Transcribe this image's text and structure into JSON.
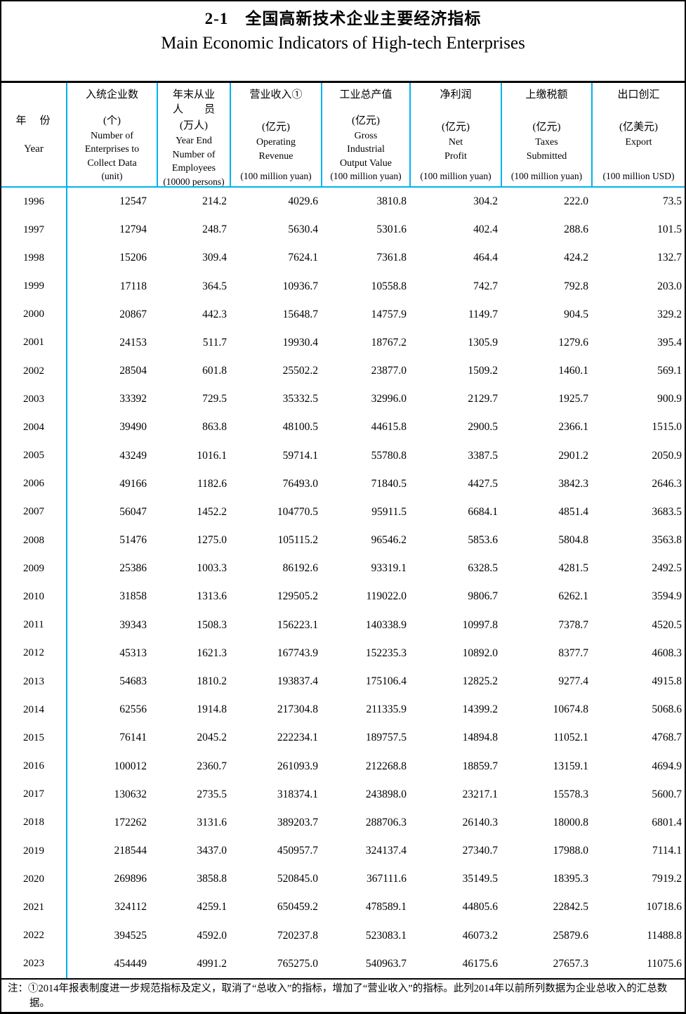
{
  "header": {
    "title_zh": "2-1　全国高新技术企业主要经济指标",
    "title_en": "Main Economic Indicators of High-tech Enterprises"
  },
  "colors": {
    "column_divider_cyan": "#00b2f0",
    "frame_black": "#000000"
  },
  "table": {
    "columns": [
      {
        "zh": "年　份",
        "en_lines": [
          "Year"
        ]
      },
      {
        "zh": "入统企业数",
        "unit_zh": "(个)",
        "en_lines": [
          "Number of",
          "Enterprises to",
          "Collect Data"
        ],
        "unit_en": "(unit)"
      },
      {
        "zh": "年末从业",
        "zh2": "人　　员",
        "unit_zh": "(万人)",
        "en_lines": [
          "Year End",
          "Number of",
          "Employees"
        ],
        "unit_en": "(10000 persons)"
      },
      {
        "zh": "营业收入①",
        "unit_zh": "(亿元)",
        "en_lines": [
          "Operating",
          "Revenue"
        ],
        "unit_en": "(100 million yuan)"
      },
      {
        "zh": "工业总产值",
        "unit_zh": "(亿元)",
        "en_lines": [
          "Gross",
          "Industrial",
          "Output Value"
        ],
        "unit_en": "(100 million yuan)"
      },
      {
        "zh": "净利润",
        "unit_zh": "(亿元)",
        "en_lines": [
          "Net",
          "Profit"
        ],
        "unit_en": "(100 million yuan)"
      },
      {
        "zh": "上缴税额",
        "unit_zh": "(亿元)",
        "en_lines": [
          "Taxes",
          "Submitted"
        ],
        "unit_en": "(100 million yuan)"
      },
      {
        "zh": "出口创汇",
        "unit_zh": "(亿美元)",
        "en_lines": [
          "Export"
        ],
        "unit_en": "(100 million USD)"
      }
    ],
    "rows": [
      [
        "1996",
        "12547",
        "214.2",
        "4029.6",
        "3810.8",
        "304.2",
        "222.0",
        "73.5"
      ],
      [
        "1997",
        "12794",
        "248.7",
        "5630.4",
        "5301.6",
        "402.4",
        "288.6",
        "101.5"
      ],
      [
        "1998",
        "15206",
        "309.4",
        "7624.1",
        "7361.8",
        "464.4",
        "424.2",
        "132.7"
      ],
      [
        "1999",
        "17118",
        "364.5",
        "10936.7",
        "10558.8",
        "742.7",
        "792.8",
        "203.0"
      ],
      [
        "2000",
        "20867",
        "442.3",
        "15648.7",
        "14757.9",
        "1149.7",
        "904.5",
        "329.2"
      ],
      [
        "2001",
        "24153",
        "511.7",
        "19930.4",
        "18767.2",
        "1305.9",
        "1279.6",
        "395.4"
      ],
      [
        "2002",
        "28504",
        "601.8",
        "25502.2",
        "23877.0",
        "1509.2",
        "1460.1",
        "569.1"
      ],
      [
        "2003",
        "33392",
        "729.5",
        "35332.5",
        "32996.0",
        "2129.7",
        "1925.7",
        "900.9"
      ],
      [
        "2004",
        "39490",
        "863.8",
        "48100.5",
        "44615.8",
        "2900.5",
        "2366.1",
        "1515.0"
      ],
      [
        "2005",
        "43249",
        "1016.1",
        "59714.1",
        "55780.8",
        "3387.5",
        "2901.2",
        "2050.9"
      ],
      [
        "2006",
        "49166",
        "1182.6",
        "76493.0",
        "71840.5",
        "4427.5",
        "3842.3",
        "2646.3"
      ],
      [
        "2007",
        "56047",
        "1452.2",
        "104770.5",
        "95911.5",
        "6684.1",
        "4851.4",
        "3683.5"
      ],
      [
        "2008",
        "51476",
        "1275.0",
        "105115.2",
        "96546.2",
        "5853.6",
        "5804.8",
        "3563.8"
      ],
      [
        "2009",
        "25386",
        "1003.3",
        "86192.6",
        "93319.1",
        "6328.5",
        "4281.5",
        "2492.5"
      ],
      [
        "2010",
        "31858",
        "1313.6",
        "129505.2",
        "119022.0",
        "9806.7",
        "6262.1",
        "3594.9"
      ],
      [
        "2011",
        "39343",
        "1508.3",
        "156223.1",
        "140338.9",
        "10997.8",
        "7378.7",
        "4520.5"
      ],
      [
        "2012",
        "45313",
        "1621.3",
        "167743.9",
        "152235.3",
        "10892.0",
        "8377.7",
        "4608.3"
      ],
      [
        "2013",
        "54683",
        "1810.2",
        "193837.4",
        "175106.4",
        "12825.2",
        "9277.4",
        "4915.8"
      ],
      [
        "2014",
        "62556",
        "1914.8",
        "217304.8",
        "211335.9",
        "14399.2",
        "10674.8",
        "5068.6"
      ],
      [
        "2015",
        "76141",
        "2045.2",
        "222234.1",
        "189757.5",
        "14894.8",
        "11052.1",
        "4768.7"
      ],
      [
        "2016",
        "100012",
        "2360.7",
        "261093.9",
        "212268.8",
        "18859.7",
        "13159.1",
        "4694.9"
      ],
      [
        "2017",
        "130632",
        "2735.5",
        "318374.1",
        "243898.0",
        "23217.1",
        "15578.3",
        "5600.7"
      ],
      [
        "2018",
        "172262",
        "3131.6",
        "389203.7",
        "288706.3",
        "26140.3",
        "18000.8",
        "6801.4"
      ],
      [
        "2019",
        "218544",
        "3437.0",
        "450957.7",
        "324137.4",
        "27340.7",
        "17988.0",
        "7114.1"
      ],
      [
        "2020",
        "269896",
        "3858.8",
        "520845.0",
        "367111.6",
        "35149.5",
        "18395.3",
        "7919.2"
      ],
      [
        "2021",
        "324112",
        "4259.1",
        "650459.2",
        "478589.1",
        "44805.6",
        "22842.5",
        "10718.6"
      ],
      [
        "2022",
        "394525",
        "4592.0",
        "720237.8",
        "523083.1",
        "46073.2",
        "25879.6",
        "11488.8"
      ],
      [
        "2023",
        "454449",
        "4991.2",
        "765275.0",
        "540963.7",
        "46175.6",
        "27657.3",
        "11075.6"
      ]
    ]
  },
  "footnote": {
    "text": "注：①2014年报表制度进一步规范指标及定义，取消了“总收入”的指标，增加了“营业收入”的指标。此列2014年以前所列数据为企业总收入的汇总数据。"
  }
}
